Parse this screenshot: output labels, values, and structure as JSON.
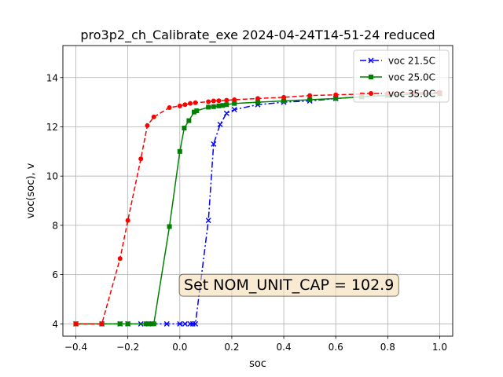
{
  "chart_data": {
    "type": "line",
    "title": "pro3p2_ch_Calibrate_exe   2024-04-24T14-51-24 reduced",
    "xlabel": "soc",
    "ylabel": "voc(soc), v",
    "xlim": [
      -0.45,
      1.05
    ],
    "ylim": [
      3.5,
      15.3
    ],
    "xticks": [
      -0.4,
      -0.2,
      0.0,
      0.2,
      0.4,
      0.6,
      0.8,
      1.0
    ],
    "xtick_labels": [
      "−0.4",
      "−0.2",
      "0.0",
      "0.2",
      "0.4",
      "0.6",
      "0.8",
      "1.0"
    ],
    "yticks": [
      4,
      6,
      8,
      10,
      12,
      14
    ],
    "ytick_labels": [
      "4",
      "6",
      "8",
      "10",
      "12",
      "14"
    ],
    "grid": true,
    "legend_position": "top-right",
    "annotation": "Set NOM_UNIT_CAP = 102.9",
    "annotation_pos": [
      0.42,
      5.6
    ],
    "series": [
      {
        "name": "voc 21.5C",
        "color": "#0000ff",
        "linestyle": "dashdot",
        "marker": "x",
        "x": [
          -0.4,
          -0.3,
          -0.23,
          -0.2,
          -0.15,
          -0.12,
          -0.05,
          0.0,
          0.02,
          0.04,
          0.05,
          0.06,
          0.11,
          0.13,
          0.155,
          0.18,
          0.21,
          0.3,
          0.4,
          0.5,
          0.6,
          0.7,
          0.8,
          0.9,
          1.0
        ],
        "y": [
          4.0,
          4.0,
          4.0,
          4.0,
          4.0,
          4.0,
          4.0,
          4.0,
          4.0,
          4.0,
          4.0,
          4.0,
          8.2,
          11.3,
          12.1,
          12.55,
          12.7,
          12.9,
          13.0,
          13.05,
          13.15,
          13.22,
          13.28,
          13.32,
          13.35
        ]
      },
      {
        "name": "voc 25.0C",
        "color": "#008000",
        "linestyle": "solid",
        "marker": "s",
        "x": [
          -0.4,
          -0.3,
          -0.23,
          -0.2,
          -0.13,
          -0.12,
          -0.11,
          -0.1,
          -0.04,
          0.0,
          0.017,
          0.035,
          0.055,
          0.065,
          0.11,
          0.13,
          0.15,
          0.165,
          0.18,
          0.21,
          0.3,
          0.4,
          0.5,
          0.6,
          0.7,
          0.8,
          0.9,
          1.0
        ],
        "y": [
          4.0,
          4.0,
          4.0,
          4.0,
          4.0,
          4.0,
          4.0,
          4.0,
          7.95,
          11.0,
          11.95,
          12.25,
          12.6,
          12.65,
          12.8,
          12.82,
          12.85,
          12.87,
          12.9,
          12.95,
          13.0,
          13.05,
          13.1,
          13.15,
          13.22,
          13.28,
          13.32,
          13.35
        ]
      },
      {
        "name": "voc 35.0C",
        "color": "#ff0000",
        "linestyle": "dashed",
        "marker": "o",
        "x": [
          -0.4,
          -0.3,
          -0.23,
          -0.2,
          -0.15,
          -0.125,
          -0.1,
          -0.04,
          0.0,
          0.02,
          0.04,
          0.06,
          0.11,
          0.13,
          0.15,
          0.18,
          0.21,
          0.3,
          0.4,
          0.5,
          0.6,
          0.7,
          0.8,
          0.9,
          1.0
        ],
        "y": [
          4.0,
          4.0,
          6.65,
          8.2,
          10.7,
          12.05,
          12.4,
          12.78,
          12.85,
          12.9,
          12.95,
          12.98,
          13.02,
          13.05,
          13.06,
          13.08,
          13.1,
          13.15,
          13.2,
          13.27,
          13.3,
          13.33,
          13.36,
          13.38,
          13.4
        ]
      }
    ]
  }
}
